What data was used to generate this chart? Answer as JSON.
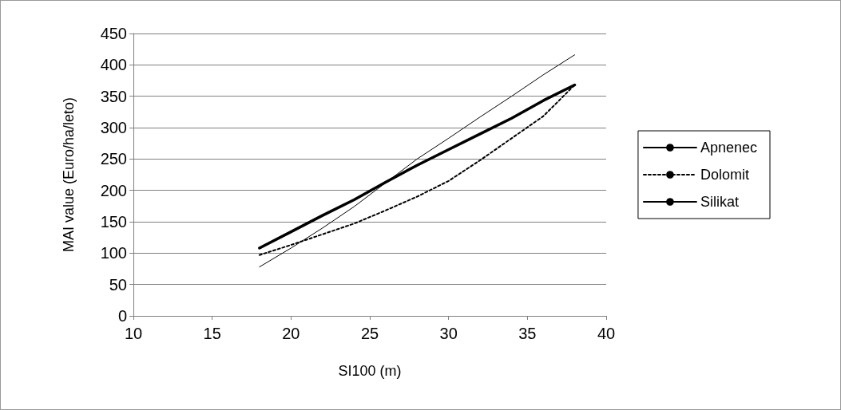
{
  "chart_data": {
    "type": "line",
    "xlabel": "SI100 (m)",
    "ylabel": "MAI value (Euro/ha/leto)",
    "x": [
      18,
      20,
      22,
      24,
      26,
      28,
      30,
      32,
      34,
      36,
      38
    ],
    "series": [
      {
        "name": "Apnenec",
        "color": "#000000",
        "line_style": "solid",
        "values": [
          78,
          108,
          140,
          174,
          212,
          250,
          283,
          317,
          350,
          384,
          416
        ]
      },
      {
        "name": "Dolomit",
        "color": "#000000",
        "line_style": "dotted",
        "values": [
          97,
          113,
          130,
          147,
          168,
          190,
          215,
          248,
          283,
          318,
          368
        ]
      },
      {
        "name": "Silikat",
        "color": "#000000",
        "line_style": "solid",
        "values": [
          108,
          134,
          160,
          185,
          213,
          240,
          265,
          290,
          315,
          343,
          368
        ]
      }
    ],
    "xlim": [
      10,
      40
    ],
    "xticks": [
      10,
      15,
      20,
      25,
      30,
      35,
      40
    ],
    "ylim": [
      0,
      450
    ],
    "yticks": [
      0,
      50,
      100,
      150,
      200,
      250,
      300,
      350,
      400,
      450
    ],
    "grid": "y",
    "legend": "right",
    "marker": "none"
  }
}
